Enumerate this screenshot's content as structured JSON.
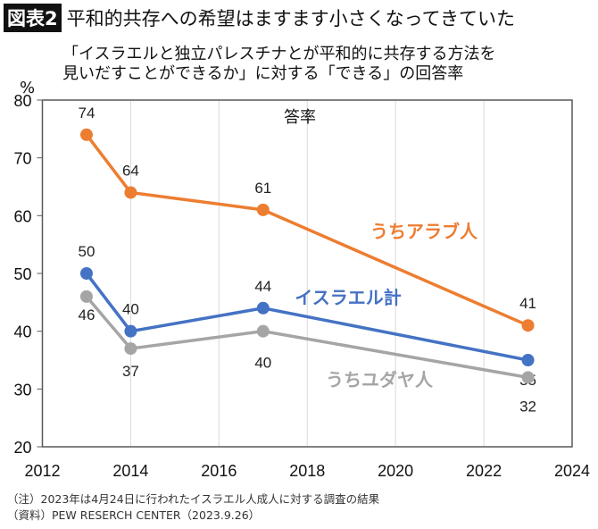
{
  "header": {
    "badge": "図表2",
    "title": "平和的共存への希望はますます小さくなってきていた"
  },
  "subtitle": [
    "「イスラエルと独立パレスチナとが平和的に共存する方法を",
    "見いだすことができるか」に対する「できる」の回答率"
  ],
  "chart_data": {
    "type": "line",
    "title": "答率",
    "ylabel": "%",
    "xlim": [
      2012,
      2024
    ],
    "ylim": [
      20,
      80
    ],
    "xticks": [
      2012,
      2014,
      2016,
      2018,
      2020,
      2022,
      2024
    ],
    "yticks": [
      20,
      30,
      40,
      50,
      60,
      70,
      80
    ],
    "grid": "vertical",
    "x": [
      2013,
      2014,
      2017,
      2023
    ],
    "series": [
      {
        "name": "うちアラブ人",
        "values": [
          74,
          64,
          61,
          41
        ],
        "color": "#ED7D31"
      },
      {
        "name": "イスラエル計",
        "values": [
          50,
          40,
          44,
          35
        ],
        "color": "#4472C4"
      },
      {
        "name": "うちユダヤ人",
        "values": [
          46,
          37,
          40,
          32
        ],
        "color": "#A5A5A5"
      }
    ]
  },
  "footer": {
    "note": "（注）2023年は4月24日に行われたイスラエル人成人に対する調査の結果",
    "source": "（資料）PEW RESERCH CENTER（2023.9.26）"
  }
}
